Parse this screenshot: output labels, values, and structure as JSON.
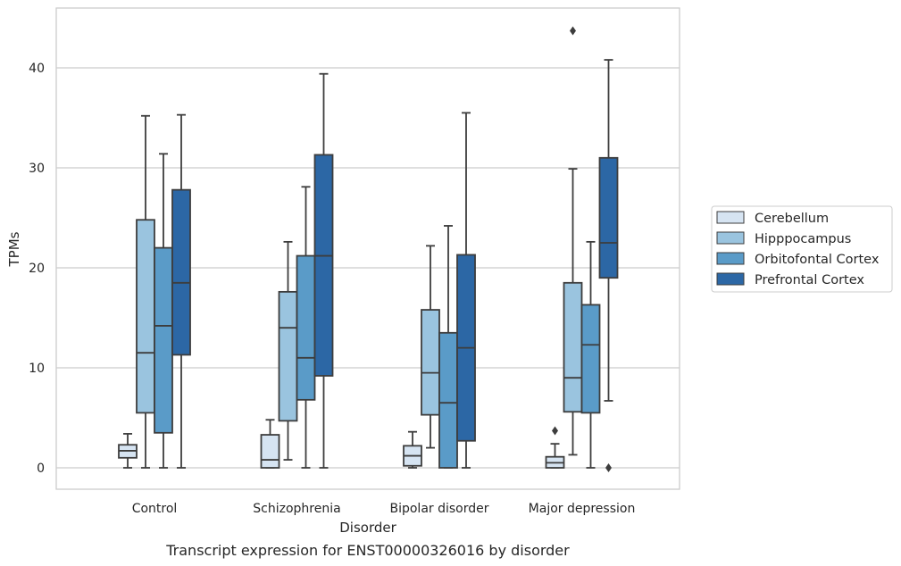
{
  "chart_data": {
    "type": "box",
    "title": "",
    "caption": "Transcript expression for ENST00000326016 by disorder",
    "xlabel": "Disorder",
    "ylabel": "TPMs",
    "ylim": [
      -2,
      46
    ],
    "yticks": [
      0,
      10,
      20,
      30,
      40
    ],
    "grid": "horizontal",
    "legend_position": "right",
    "categories": [
      "Control",
      "Schizophrenia",
      "Bipolar disorder",
      "Major depression"
    ],
    "series": [
      {
        "name": "Cerebellum",
        "color": "#d6e4f2",
        "boxes": [
          {
            "whisker_low": 0,
            "q1": 1.0,
            "median": 1.7,
            "q3": 2.3,
            "whisker_high": 3.4,
            "outliers": []
          },
          {
            "whisker_low": 0,
            "q1": 0.0,
            "median": 0.8,
            "q3": 3.3,
            "whisker_high": 4.8,
            "outliers": []
          },
          {
            "whisker_low": 0,
            "q1": 0.2,
            "median": 1.2,
            "q3": 2.2,
            "whisker_high": 3.6,
            "outliers": []
          },
          {
            "whisker_low": 0,
            "q1": 0.0,
            "median": 0.5,
            "q3": 1.1,
            "whisker_high": 2.4,
            "outliers": [
              3.7
            ]
          }
        ]
      },
      {
        "name": "Hipppocampus",
        "color": "#9ac4df",
        "boxes": [
          {
            "whisker_low": 0,
            "q1": 5.5,
            "median": 11.5,
            "q3": 24.8,
            "whisker_high": 35.2,
            "outliers": []
          },
          {
            "whisker_low": 0.8,
            "q1": 4.7,
            "median": 14.0,
            "q3": 17.6,
            "whisker_high": 22.6,
            "outliers": []
          },
          {
            "whisker_low": 2.0,
            "q1": 5.3,
            "median": 9.5,
            "q3": 15.8,
            "whisker_high": 22.2,
            "outliers": []
          },
          {
            "whisker_low": 1.3,
            "q1": 5.6,
            "median": 9.0,
            "q3": 18.5,
            "whisker_high": 29.9,
            "outliers": [
              43.7
            ]
          }
        ]
      },
      {
        "name": "Orbitofontal Cortex",
        "color": "#5a9bc8",
        "boxes": [
          {
            "whisker_low": 0,
            "q1": 3.5,
            "median": 14.2,
            "q3": 22.0,
            "whisker_high": 31.4,
            "outliers": []
          },
          {
            "whisker_low": 0,
            "q1": 6.8,
            "median": 11.0,
            "q3": 21.2,
            "whisker_high": 28.1,
            "outliers": []
          },
          {
            "whisker_low": 0,
            "q1": 0.0,
            "median": 6.5,
            "q3": 13.5,
            "whisker_high": 24.2,
            "outliers": []
          },
          {
            "whisker_low": 0,
            "q1": 5.5,
            "median": 12.3,
            "q3": 16.3,
            "whisker_high": 22.6,
            "outliers": []
          }
        ]
      },
      {
        "name": "Prefrontal Cortex",
        "color": "#2c67a5",
        "boxes": [
          {
            "whisker_low": 0,
            "q1": 11.3,
            "median": 18.5,
            "q3": 27.8,
            "whisker_high": 35.3,
            "outliers": []
          },
          {
            "whisker_low": 0,
            "q1": 9.2,
            "median": 21.2,
            "q3": 31.3,
            "whisker_high": 39.4,
            "outliers": []
          },
          {
            "whisker_low": 0,
            "q1": 2.7,
            "median": 12.0,
            "q3": 21.3,
            "whisker_high": 35.5,
            "outliers": []
          },
          {
            "whisker_low": 6.7,
            "q1": 19.0,
            "median": 22.5,
            "q3": 31.0,
            "whisker_high": 40.8,
            "outliers": [
              0.0
            ]
          }
        ]
      }
    ]
  }
}
